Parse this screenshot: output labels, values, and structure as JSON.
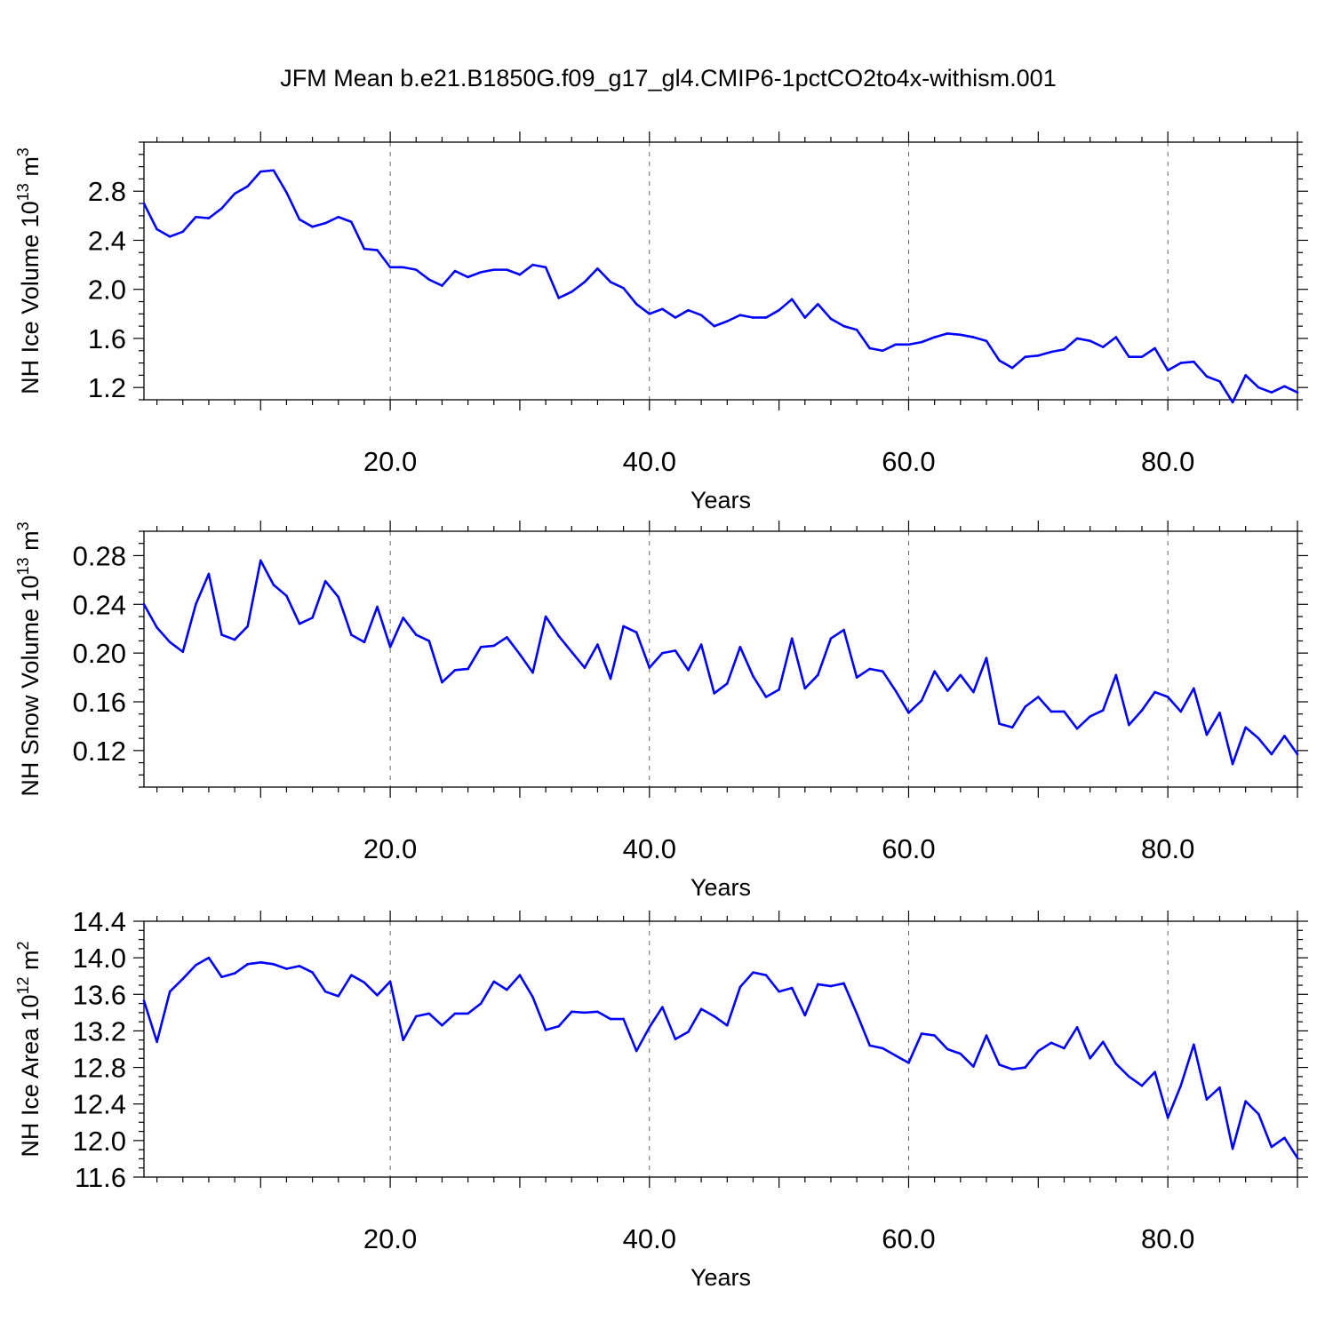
{
  "title": "JFM Mean b.e21.B1850G.f09_g17_gl4.CMIP6-1pctCO2to4x-withism.001",
  "line_color": "#0000ff",
  "chart_data": [
    {
      "type": "line",
      "ylabel": "NH Ice Volume 10",
      "ylabel_exp": "13",
      "ylabel_unit": " m",
      "ylabel_unit_exp": "3",
      "xlabel": "Years",
      "xlim": [
        1,
        90
      ],
      "ylim": [
        1.1,
        3.2
      ],
      "y_ticks": [
        "1.2",
        "1.6",
        "2.0",
        "2.4",
        "2.8"
      ],
      "x_ticks": [
        "20.0",
        "40.0",
        "60.0",
        "80.0"
      ],
      "grid_x": true,
      "series": [
        {
          "x_start": 1,
          "values": [
            2.7,
            2.49,
            2.43,
            2.47,
            2.59,
            2.58,
            2.66,
            2.78,
            2.84,
            2.96,
            2.97,
            2.79,
            2.57,
            2.51,
            2.54,
            2.59,
            2.55,
            2.33,
            2.32,
            2.18,
            2.18,
            2.16,
            2.08,
            2.03,
            2.15,
            2.1,
            2.14,
            2.16,
            2.16,
            2.12,
            2.2,
            2.18,
            1.93,
            1.98,
            2.06,
            2.17,
            2.06,
            2.01,
            1.88,
            1.8,
            1.84,
            1.77,
            1.83,
            1.79,
            1.7,
            1.74,
            1.79,
            1.77,
            1.77,
            1.83,
            1.92,
            1.77,
            1.88,
            1.76,
            1.7,
            1.67,
            1.52,
            1.5,
            1.55,
            1.55,
            1.57,
            1.61,
            1.64,
            1.63,
            1.61,
            1.58,
            1.42,
            1.36,
            1.45,
            1.46,
            1.49,
            1.51,
            1.6,
            1.58,
            1.53,
            1.61,
            1.45,
            1.45,
            1.52,
            1.34,
            1.4,
            1.41,
            1.29,
            1.25,
            1.08,
            1.3,
            1.2,
            1.16,
            1.21,
            1.16
          ]
        }
      ]
    },
    {
      "type": "line",
      "ylabel": "NH Snow Volume 10",
      "ylabel_exp": "13",
      "ylabel_unit": " m",
      "ylabel_unit_exp": "3",
      "xlabel": "Years",
      "xlim": [
        1,
        90
      ],
      "ylim": [
        0.09,
        0.3
      ],
      "y_ticks": [
        "0.12",
        "0.16",
        "0.20",
        "0.24",
        "0.28"
      ],
      "x_ticks": [
        "20.0",
        "40.0",
        "60.0",
        "80.0"
      ],
      "grid_x": true,
      "series": [
        {
          "x_start": 1,
          "values": [
            0.24,
            0.221,
            0.209,
            0.201,
            0.24,
            0.265,
            0.215,
            0.211,
            0.222,
            0.276,
            0.256,
            0.247,
            0.224,
            0.229,
            0.259,
            0.246,
            0.215,
            0.209,
            0.238,
            0.205,
            0.229,
            0.215,
            0.21,
            0.176,
            0.186,
            0.187,
            0.205,
            0.206,
            0.213,
            0.199,
            0.184,
            0.23,
            0.214,
            0.201,
            0.188,
            0.207,
            0.179,
            0.222,
            0.217,
            0.188,
            0.2,
            0.202,
            0.186,
            0.207,
            0.167,
            0.175,
            0.205,
            0.181,
            0.164,
            0.17,
            0.212,
            0.171,
            0.182,
            0.212,
            0.219,
            0.18,
            0.187,
            0.185,
            0.169,
            0.151,
            0.161,
            0.185,
            0.169,
            0.182,
            0.168,
            0.196,
            0.142,
            0.139,
            0.156,
            0.164,
            0.152,
            0.152,
            0.138,
            0.148,
            0.153,
            0.182,
            0.141,
            0.153,
            0.168,
            0.164,
            0.152,
            0.171,
            0.133,
            0.151,
            0.109,
            0.139,
            0.13,
            0.117,
            0.132,
            0.117
          ]
        }
      ]
    },
    {
      "type": "line",
      "ylabel": "NH Ice Area 10",
      "ylabel_exp": "12",
      "ylabel_unit": " m",
      "ylabel_unit_exp": "2",
      "xlabel": "Years",
      "xlim": [
        1,
        90
      ],
      "ylim": [
        11.6,
        14.4
      ],
      "y_ticks": [
        "11.6",
        "12.0",
        "12.4",
        "12.8",
        "13.2",
        "13.6",
        "14.0",
        "14.4"
      ],
      "x_ticks": [
        "20.0",
        "40.0",
        "60.0",
        "80.0"
      ],
      "grid_x": true,
      "series": [
        {
          "x_start": 1,
          "values": [
            13.53,
            13.08,
            13.63,
            13.77,
            13.92,
            14.0,
            13.79,
            13.83,
            13.93,
            13.95,
            13.93,
            13.88,
            13.91,
            13.84,
            13.63,
            13.58,
            13.81,
            13.73,
            13.59,
            13.74,
            13.1,
            13.36,
            13.39,
            13.26,
            13.39,
            13.39,
            13.5,
            13.74,
            13.65,
            13.81,
            13.57,
            13.21,
            13.25,
            13.41,
            13.4,
            13.41,
            13.33,
            13.33,
            12.98,
            13.24,
            13.46,
            13.11,
            13.19,
            13.44,
            13.36,
            13.26,
            13.68,
            13.84,
            13.81,
            13.63,
            13.67,
            13.37,
            13.71,
            13.69,
            13.72,
            13.39,
            13.04,
            13.01,
            12.93,
            12.85,
            13.17,
            13.15,
            13.0,
            12.95,
            12.81,
            13.15,
            12.83,
            12.78,
            12.8,
            12.98,
            13.07,
            13.01,
            13.24,
            12.9,
            13.08,
            12.84,
            12.7,
            12.6,
            12.75,
            12.25,
            12.6,
            13.05,
            12.45,
            12.58,
            11.91,
            12.43,
            12.29,
            11.93,
            12.03,
            11.81
          ]
        }
      ]
    }
  ]
}
